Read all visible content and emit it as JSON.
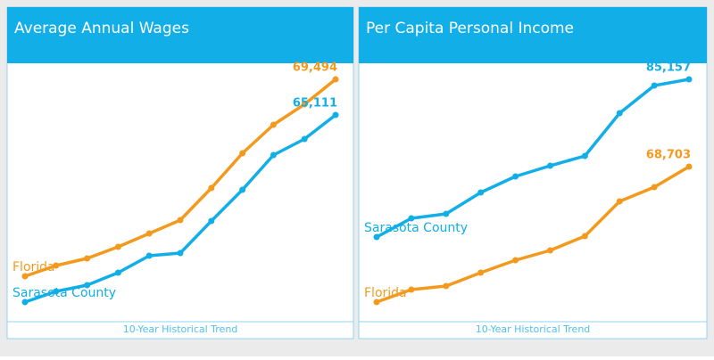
{
  "chart_data": [
    {
      "type": "line",
      "title": "Average Annual Wages",
      "footer": "10-Year Historical Trend",
      "categories": [
        null,
        null,
        null,
        null,
        null,
        null,
        null,
        null,
        null,
        null,
        null
      ],
      "series": [
        {
          "name": "Florida",
          "color": "#f39a1e",
          "values": [
            45272,
            46588,
            47464,
            48889,
            50533,
            52178,
            56123,
            60397,
            63904,
            66425,
            69494
          ],
          "value_labels": [
            null,
            null,
            null,
            null,
            null,
            null,
            null,
            null,
            null,
            null,
            "69,494"
          ]
        },
        {
          "name": "Sarasota County",
          "color": "#11aee8",
          "values": [
            42094,
            43409,
            44176,
            45710,
            47793,
            48122,
            52068,
            55904,
            60178,
            62151,
            65111
          ],
          "value_labels": [
            null,
            null,
            null,
            null,
            null,
            null,
            null,
            null,
            null,
            null,
            "65,111"
          ]
        }
      ]
    },
    {
      "type": "line",
      "title": "Per Capita Personal Income",
      "footer": "10-Year Historical Trend",
      "categories": [
        null,
        null,
        null,
        null,
        null,
        null,
        null,
        null,
        null,
        null
      ],
      "series": [
        {
          "name": "Sarasota County",
          "color": "#11aee8",
          "values": [
            55439,
            58965,
            59804,
            63834,
            66856,
            68870,
            70718,
            78777,
            83982,
            85157
          ],
          "value_labels": [
            null,
            null,
            null,
            null,
            null,
            null,
            null,
            null,
            null,
            "85,157"
          ]
        },
        {
          "name": "Florida",
          "color": "#f39a1e",
          "values": [
            43182,
            45532,
            46204,
            48722,
            51073,
            52920,
            55607,
            62155,
            64841,
            68703
          ],
          "value_labels": [
            null,
            null,
            null,
            null,
            null,
            null,
            null,
            null,
            null,
            "68,703"
          ]
        }
      ]
    }
  ]
}
